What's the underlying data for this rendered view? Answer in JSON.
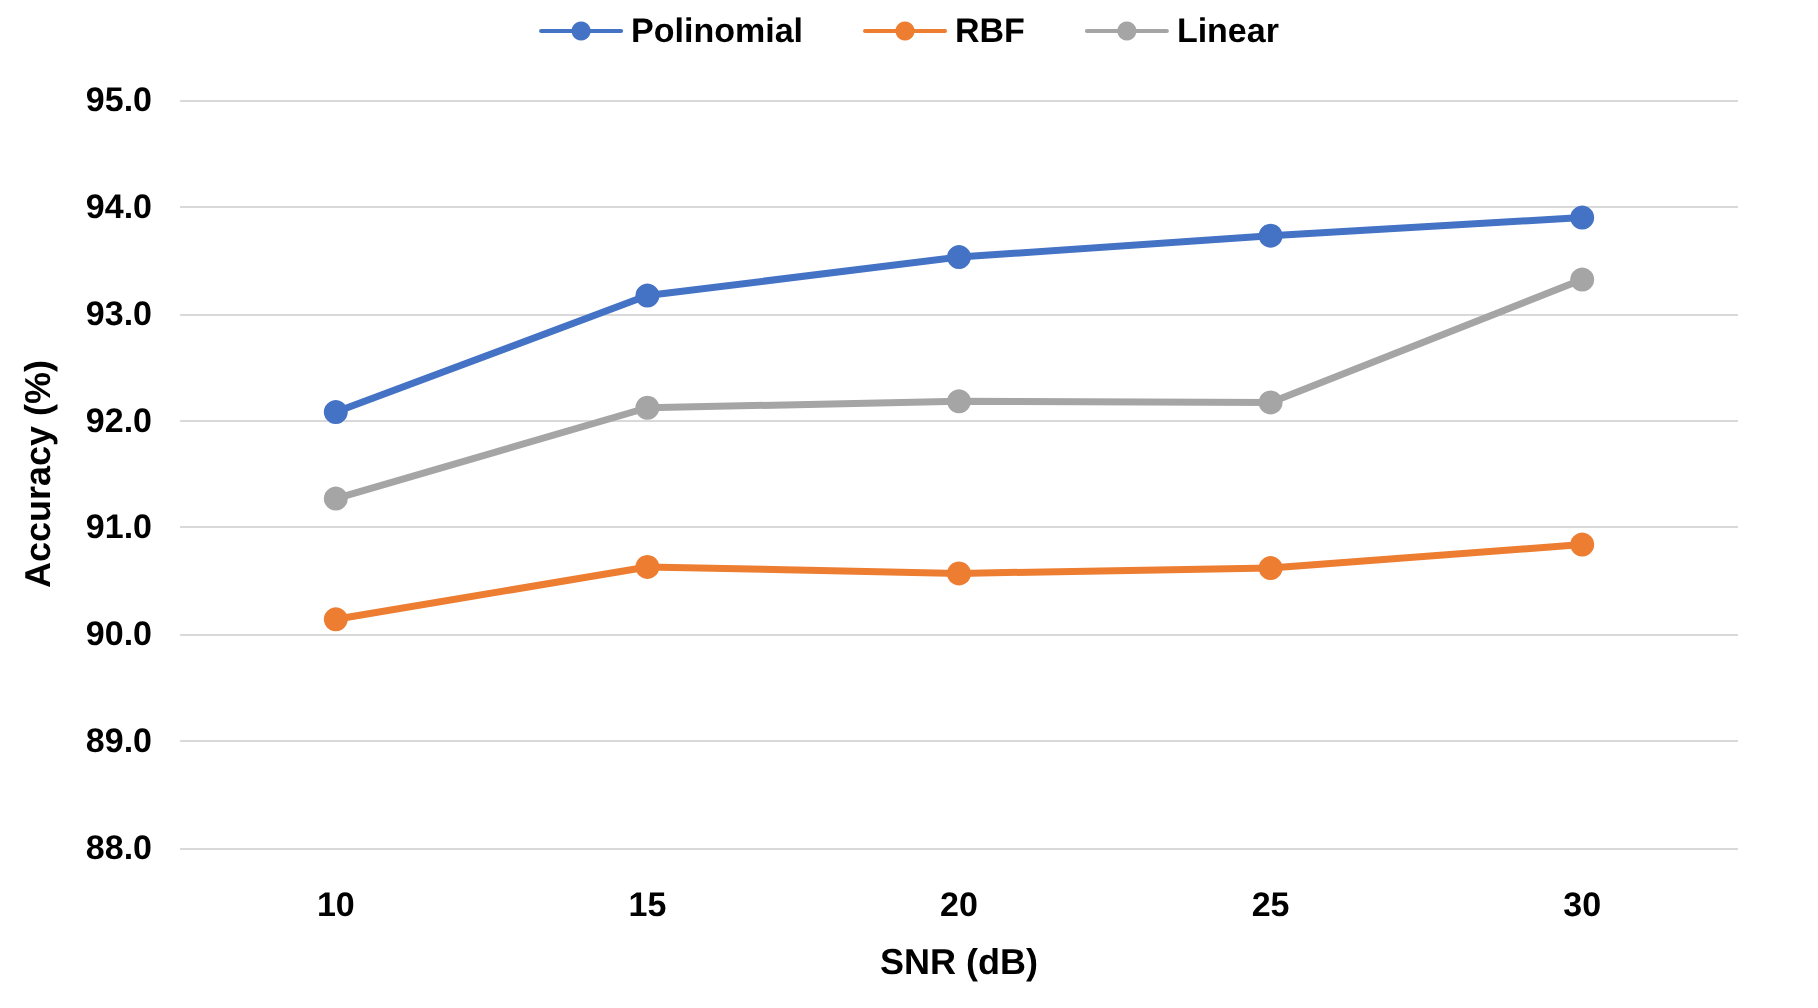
{
  "chart_data": {
    "type": "line",
    "xlabel": "SNR (dB)",
    "ylabel": "Accuracy (%)",
    "categories": [
      "10",
      "15",
      "20",
      "25",
      "30"
    ],
    "series": [
      {
        "name": "Polinomial",
        "color": "#4472c4",
        "values": [
          92.08,
          93.17,
          93.53,
          93.73,
          93.9
        ]
      },
      {
        "name": "RBF",
        "color": "#ed7d31",
        "values": [
          90.14,
          90.63,
          90.57,
          90.62,
          90.84
        ]
      },
      {
        "name": "Linear",
        "color": "#a5a5a5",
        "values": [
          91.27,
          92.12,
          92.18,
          92.17,
          93.32
        ]
      }
    ],
    "ylim": [
      88,
      95
    ],
    "yticks": [
      {
        "value": 88,
        "label": "88.0"
      },
      {
        "value": 89,
        "label": "89.0"
      },
      {
        "value": 90,
        "label": "90.0"
      },
      {
        "value": 91,
        "label": "91.0"
      },
      {
        "value": 92,
        "label": "92.0"
      },
      {
        "value": 93,
        "label": "93.0"
      },
      {
        "value": 94,
        "label": "94.0"
      },
      {
        "value": 95,
        "label": "95.0"
      }
    ],
    "grid": "y",
    "legend": "top",
    "marker": "circle",
    "line_style": "solid"
  }
}
